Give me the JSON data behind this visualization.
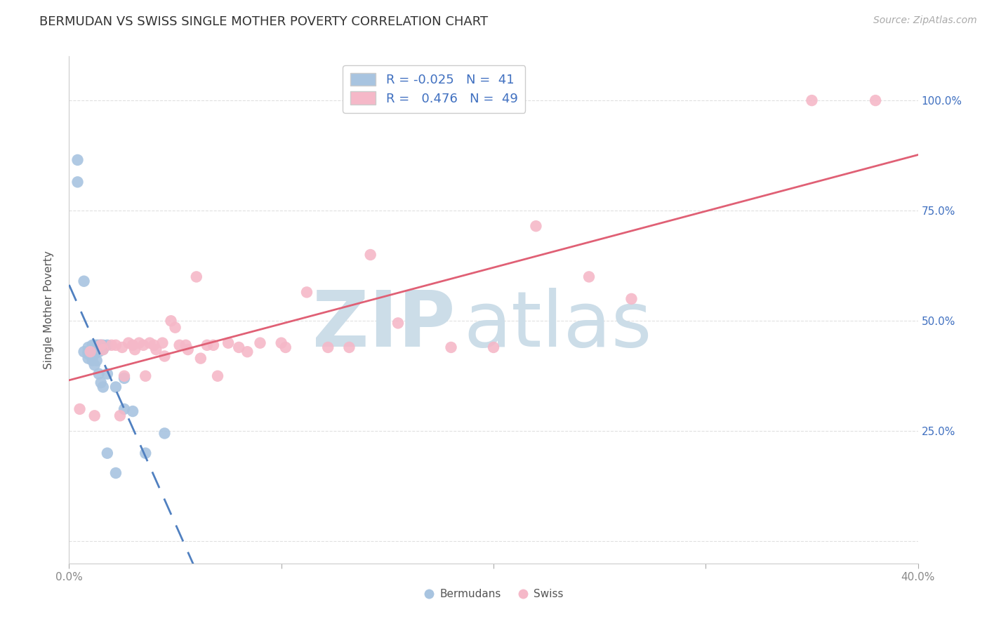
{
  "title": "BERMUDAN VS SWISS SINGLE MOTHER POVERTY CORRELATION CHART",
  "source": "Source: ZipAtlas.com",
  "ylabel": "Single Mother Poverty",
  "xlim": [
    0.0,
    0.4
  ],
  "ylim": [
    -0.05,
    1.1
  ],
  "blue_R": -0.025,
  "blue_N": 41,
  "pink_R": 0.476,
  "pink_N": 49,
  "blue_color": "#a8c4e0",
  "pink_color": "#f5b8c8",
  "blue_line_color": "#5080c0",
  "pink_line_color": "#e06075",
  "legend_text_color": "#4070c0",
  "watermark_color": "#ccdde8",
  "legend_label_blue": "Bermudans",
  "legend_label_pink": "Swiss",
  "background_color": "#ffffff",
  "blue_scatter_x": [
    0.004,
    0.004,
    0.007,
    0.007,
    0.009,
    0.009,
    0.009,
    0.009,
    0.011,
    0.011,
    0.011,
    0.011,
    0.012,
    0.012,
    0.012,
    0.012,
    0.012,
    0.013,
    0.013,
    0.013,
    0.013,
    0.014,
    0.014,
    0.014,
    0.014,
    0.015,
    0.015,
    0.015,
    0.016,
    0.016,
    0.016,
    0.018,
    0.018,
    0.018,
    0.022,
    0.022,
    0.026,
    0.026,
    0.03,
    0.036,
    0.045
  ],
  "blue_scatter_y": [
    0.865,
    0.815,
    0.59,
    0.43,
    0.44,
    0.43,
    0.425,
    0.415,
    0.445,
    0.435,
    0.425,
    0.41,
    0.445,
    0.44,
    0.43,
    0.425,
    0.4,
    0.445,
    0.44,
    0.435,
    0.41,
    0.445,
    0.435,
    0.43,
    0.38,
    0.445,
    0.435,
    0.36,
    0.445,
    0.435,
    0.35,
    0.445,
    0.38,
    0.2,
    0.35,
    0.155,
    0.37,
    0.3,
    0.295,
    0.2,
    0.245
  ],
  "pink_scatter_x": [
    0.005,
    0.01,
    0.012,
    0.015,
    0.016,
    0.02,
    0.022,
    0.024,
    0.025,
    0.026,
    0.028,
    0.03,
    0.031,
    0.033,
    0.035,
    0.036,
    0.038,
    0.04,
    0.041,
    0.044,
    0.045,
    0.048,
    0.05,
    0.052,
    0.055,
    0.056,
    0.06,
    0.062,
    0.065,
    0.068,
    0.07,
    0.075,
    0.08,
    0.084,
    0.09,
    0.1,
    0.102,
    0.112,
    0.122,
    0.132,
    0.142,
    0.155,
    0.18,
    0.2,
    0.22,
    0.245,
    0.265,
    0.35,
    0.38
  ],
  "pink_scatter_y": [
    0.3,
    0.43,
    0.285,
    0.445,
    0.435,
    0.445,
    0.445,
    0.285,
    0.44,
    0.375,
    0.45,
    0.445,
    0.435,
    0.45,
    0.445,
    0.375,
    0.45,
    0.445,
    0.435,
    0.45,
    0.42,
    0.5,
    0.485,
    0.445,
    0.445,
    0.435,
    0.6,
    0.415,
    0.445,
    0.445,
    0.375,
    0.45,
    0.44,
    0.43,
    0.45,
    0.45,
    0.44,
    0.565,
    0.44,
    0.44,
    0.65,
    0.495,
    0.44,
    0.44,
    0.715,
    0.6,
    0.55,
    1.0,
    1.0
  ],
  "grid_color": "#e0e0e0",
  "title_fontsize": 13,
  "axis_label_fontsize": 11,
  "tick_fontsize": 11,
  "source_fontsize": 10,
  "legend_fontsize": 13
}
